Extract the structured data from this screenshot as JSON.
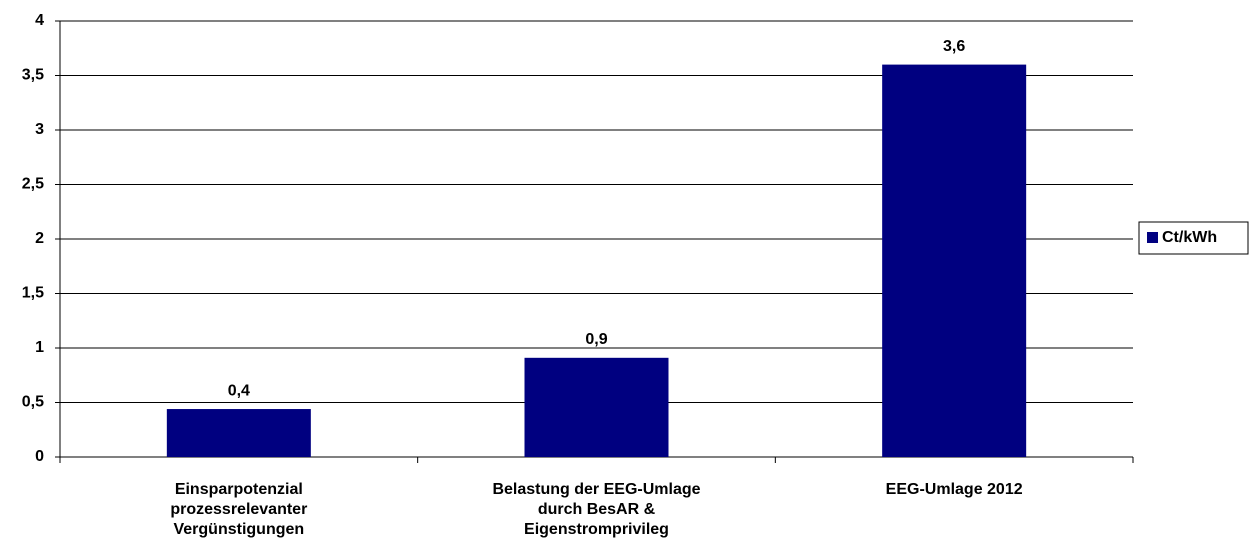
{
  "chart_data": {
    "type": "bar",
    "categories": [
      "Einsparpotenzial prozessrelevanter Vergünstigungen",
      "Belastung der EEG-Umlage durch BesAR & Eigenstromprivileg",
      "EEG-Umlage 2012"
    ],
    "series": [
      {
        "name": "Ct/kWh",
        "color": "#000080",
        "values": [
          0.44,
          0.91,
          3.6
        ],
        "value_labels": [
          "0,4",
          "0,9",
          "3,6"
        ]
      }
    ],
    "ylim": [
      0,
      4
    ],
    "yticks": [
      0,
      {
        "value": 0.5,
        "label": "0,5"
      },
      1,
      {
        "value": 1.5,
        "label": "1,5"
      },
      2,
      {
        "value": 2.5,
        "label": "2,5"
      },
      3,
      {
        "value": 3.5,
        "label": "3,5"
      },
      4
    ],
    "grid": true,
    "legend": "right"
  }
}
